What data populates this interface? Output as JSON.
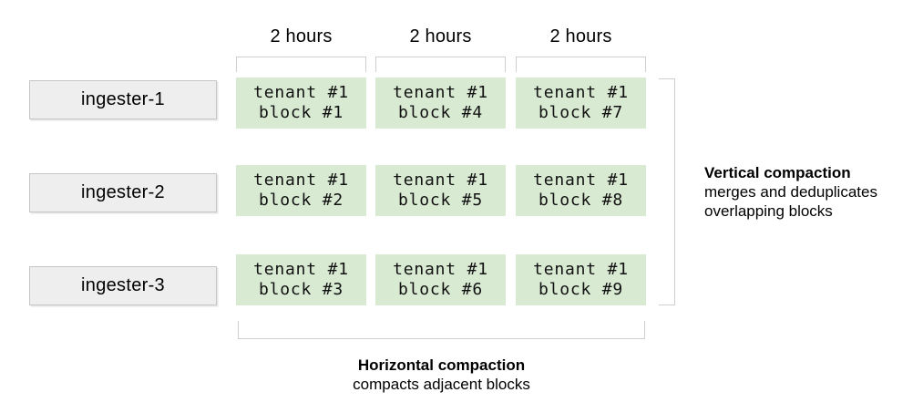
{
  "colors": {
    "block_fill": "#d9ead3",
    "ingester_fill": "#eeeeee",
    "ingester_border": "#c6c6c6",
    "bracket": "#cfcfcf"
  },
  "time_labels": [
    "2 hours",
    "2 hours",
    "2 hours"
  ],
  "ingesters": [
    {
      "label": "ingester-1"
    },
    {
      "label": "ingester-2"
    },
    {
      "label": "ingester-3"
    }
  ],
  "grid": {
    "rows": [
      [
        {
          "tenant": "tenant #1",
          "block": "block #1"
        },
        {
          "tenant": "tenant #1",
          "block": "block #4"
        },
        {
          "tenant": "tenant #1",
          "block": "block #7"
        }
      ],
      [
        {
          "tenant": "tenant #1",
          "block": "block #2"
        },
        {
          "tenant": "tenant #1",
          "block": "block #5"
        },
        {
          "tenant": "tenant #1",
          "block": "block #8"
        }
      ],
      [
        {
          "tenant": "tenant #1",
          "block": "block #3"
        },
        {
          "tenant": "tenant #1",
          "block": "block #6"
        },
        {
          "tenant": "tenant #1",
          "block": "block #9"
        }
      ]
    ]
  },
  "vertical_compaction": {
    "title": "Vertical compaction",
    "description_line1": "merges and deduplicates",
    "description_line2": "overlapping blocks"
  },
  "horizontal_compaction": {
    "title": "Horizontal compaction",
    "description": "compacts adjacent blocks"
  }
}
